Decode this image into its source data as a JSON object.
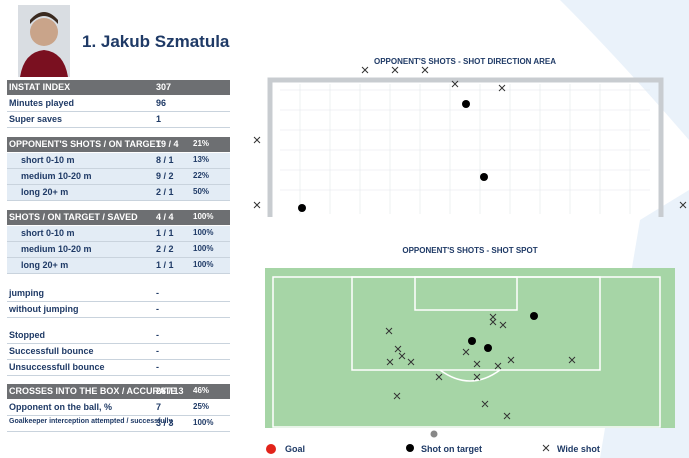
{
  "player": {
    "name": "1. Jakub Szmatula"
  },
  "table": {
    "rows": [
      [
        "INSTAT INDEX",
        "307"
      ],
      [
        "Minutes played",
        "96"
      ],
      [
        "Super saves",
        "1"
      ],
      [
        "OPPONENT'S SHOTS / ON TARGET",
        "19 / 4",
        "21%"
      ],
      [
        "short 0-10 m",
        "8 / 1",
        "13%"
      ],
      [
        "medium 10-20 m",
        "9 / 2",
        "22%"
      ],
      [
        "long 20+ m",
        "2 / 1",
        "50%"
      ],
      [
        "SHOTS / ON TARGET / SAVED",
        "4 / 4",
        "100%"
      ],
      [
        "short 0-10 m",
        "1 / 1",
        "100%"
      ],
      [
        "medium 10-20 m",
        "2 / 2",
        "100%"
      ],
      [
        "long 20+ m",
        "1 / 1",
        "100%"
      ],
      [
        "jumping",
        "-"
      ],
      [
        "without jumping",
        "-"
      ],
      [
        "Stopped",
        "-"
      ],
      [
        "Successfull bounce",
        "-"
      ],
      [
        "Unsuccessfull bounce",
        "-"
      ],
      [
        "CROSSES INTO THE BOX / ACCURATE",
        "28 / 13",
        "46%"
      ],
      [
        "Opponent on the ball, %",
        "7",
        "25%"
      ],
      [
        "Goalkeeper interception attempted / successfully",
        "3 / 3",
        "100%"
      ]
    ]
  },
  "charts": [
    {
      "title": "OPPONENT'S SHOTS - SHOT DIRECTION AREA"
    },
    {
      "title": "OPPONENT'S SHOTS - SHOT SPOT"
    }
  ],
  "legend": [
    "Goal",
    "Shot on target",
    "Wide shot"
  ]
}
